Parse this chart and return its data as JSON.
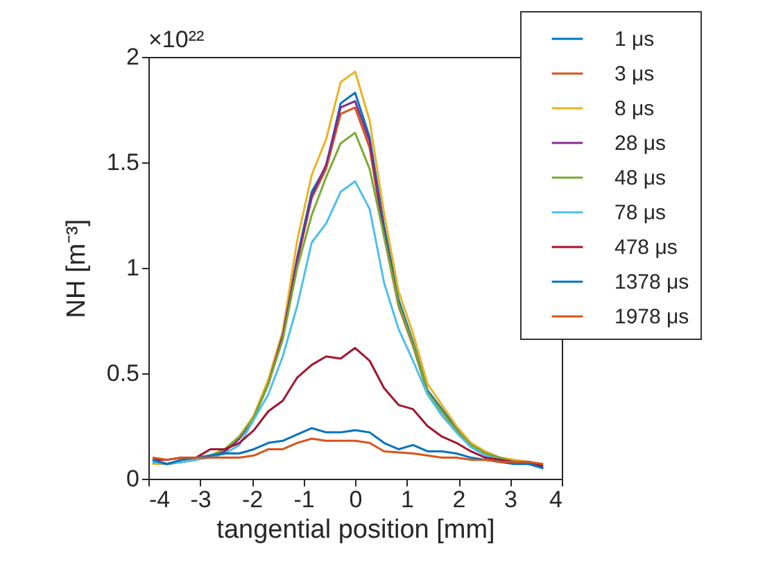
{
  "chart_data": {
    "type": "line",
    "xlabel": "tangential position [mm]",
    "ylabel": "NH [m⁻³]",
    "annotations": [
      "×10²²"
    ],
    "x": [
      -3.92,
      -3.64,
      -3.36,
      -3.08,
      -2.8,
      -2.52,
      -2.24,
      -1.96,
      -1.68,
      -1.4,
      -1.12,
      -0.84,
      -0.56,
      -0.28,
      0,
      0.28,
      0.56,
      0.84,
      1.12,
      1.4,
      1.68,
      1.96,
      2.24,
      2.52,
      2.8,
      3.08,
      3.36,
      3.64
    ],
    "xlim": [
      -4,
      4
    ],
    "xticks": [
      -4,
      -3,
      -2,
      -1,
      0,
      1,
      2,
      3,
      4
    ],
    "ylim": [
      0,
      2
    ],
    "yticks": [
      0,
      0.5,
      1,
      1.5,
      2
    ],
    "grid": false,
    "legend": "top right",
    "line_style": "solid",
    "marker": "none",
    "series": [
      {
        "name": "1 μs",
        "color": "#0072bd",
        "values": [
          0.08,
          0.07,
          0.08,
          0.09,
          0.11,
          0.13,
          0.19,
          0.29,
          0.45,
          0.68,
          1.05,
          1.36,
          1.48,
          1.78,
          1.83,
          1.62,
          1.2,
          0.85,
          0.65,
          0.42,
          0.33,
          0.24,
          0.16,
          0.12,
          0.1,
          0.08,
          0.08,
          0.05
        ]
      },
      {
        "name": "3 μs",
        "color": "#d95319",
        "values": [
          0.08,
          0.07,
          0.08,
          0.09,
          0.11,
          0.13,
          0.19,
          0.29,
          0.45,
          0.67,
          1.03,
          1.33,
          1.47,
          1.73,
          1.76,
          1.57,
          1.15,
          0.82,
          0.63,
          0.41,
          0.32,
          0.23,
          0.16,
          0.12,
          0.1,
          0.08,
          0.08,
          0.05
        ]
      },
      {
        "name": "8 μs",
        "color": "#edb120",
        "values": [
          0.07,
          0.07,
          0.08,
          0.09,
          0.11,
          0.14,
          0.2,
          0.3,
          0.47,
          0.7,
          1.13,
          1.44,
          1.61,
          1.88,
          1.93,
          1.7,
          1.26,
          0.89,
          0.69,
          0.45,
          0.35,
          0.25,
          0.17,
          0.13,
          0.1,
          0.09,
          0.08,
          0.05
        ]
      },
      {
        "name": "28 μs",
        "color": "#7e2f8e",
        "values": [
          0.08,
          0.07,
          0.08,
          0.09,
          0.11,
          0.13,
          0.19,
          0.29,
          0.45,
          0.68,
          1.04,
          1.34,
          1.49,
          1.76,
          1.79,
          1.6,
          1.17,
          0.83,
          0.64,
          0.41,
          0.32,
          0.23,
          0.16,
          0.12,
          0.1,
          0.08,
          0.08,
          0.05
        ]
      },
      {
        "name": "48 μs",
        "color": "#77ac30",
        "values": [
          null,
          null,
          0.08,
          0.09,
          0.11,
          0.14,
          0.2,
          0.29,
          0.45,
          0.66,
          1.0,
          1.25,
          1.43,
          1.59,
          1.64,
          1.47,
          1.15,
          0.83,
          0.64,
          0.41,
          0.32,
          0.23,
          0.16,
          0.12,
          0.1,
          0.08,
          0.08,
          0.05
        ]
      },
      {
        "name": "78 μs",
        "color": "#4dbeee",
        "values": [
          0.08,
          0.07,
          0.08,
          0.09,
          0.1,
          0.12,
          0.16,
          0.28,
          0.4,
          0.58,
          0.82,
          1.12,
          1.21,
          1.36,
          1.41,
          1.28,
          0.93,
          0.71,
          0.56,
          0.4,
          0.3,
          0.22,
          0.15,
          0.11,
          0.09,
          0.08,
          0.07,
          0.05
        ]
      },
      {
        "name": "478 μs",
        "color": "#a2142f",
        "values": [
          0.09,
          0.09,
          0.1,
          0.1,
          0.14,
          0.14,
          0.17,
          0.23,
          0.32,
          0.37,
          0.48,
          0.54,
          0.58,
          0.57,
          0.62,
          0.56,
          0.43,
          0.35,
          0.33,
          0.25,
          0.2,
          0.17,
          0.13,
          0.1,
          0.09,
          0.08,
          0.08,
          0.06
        ]
      },
      {
        "name": "1378 μs",
        "color": "#0072bd",
        "values": [
          0.09,
          0.07,
          0.09,
          0.1,
          0.11,
          0.12,
          0.12,
          0.14,
          0.17,
          0.18,
          0.21,
          0.24,
          0.22,
          0.22,
          0.23,
          0.22,
          0.17,
          0.14,
          0.16,
          0.13,
          0.13,
          0.12,
          0.1,
          0.09,
          0.08,
          0.07,
          0.07,
          0.05
        ]
      },
      {
        "name": "1978 μs",
        "color": "#d95319",
        "values": [
          0.1,
          0.09,
          0.1,
          0.1,
          0.1,
          0.1,
          0.1,
          0.11,
          0.14,
          0.14,
          0.17,
          0.19,
          0.18,
          0.18,
          0.18,
          0.17,
          0.13,
          0.125,
          0.12,
          0.11,
          0.1,
          0.1,
          0.09,
          0.09,
          0.08,
          0.08,
          0.08,
          0.07
        ]
      }
    ]
  }
}
